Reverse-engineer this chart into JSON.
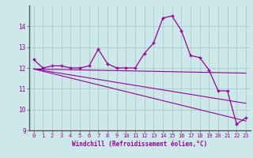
{
  "main_line_x": [
    0,
    1,
    2,
    3,
    4,
    5,
    6,
    7,
    8,
    9,
    10,
    11,
    12,
    13,
    14,
    15,
    16,
    17,
    18,
    19,
    20,
    21,
    22,
    23
  ],
  "main_line_y": [
    12.4,
    12.0,
    12.1,
    12.1,
    12.0,
    12.0,
    12.1,
    12.9,
    12.2,
    12.0,
    12.0,
    12.0,
    12.7,
    13.2,
    14.4,
    14.5,
    13.8,
    12.6,
    12.5,
    11.9,
    10.9,
    10.9,
    9.3,
    9.6
  ],
  "trend1_x": [
    0,
    23
  ],
  "trend1_y": [
    11.95,
    11.75
  ],
  "trend2_x": [
    0,
    23
  ],
  "trend2_y": [
    11.95,
    10.3
  ],
  "trend3_x": [
    0,
    23
  ],
  "trend3_y": [
    11.95,
    9.45
  ],
  "bg_color": "#cce8e8",
  "grid_color": "#aacccc",
  "line_color": "#990099",
  "xlim": [
    -0.5,
    23.5
  ],
  "ylim": [
    9,
    15
  ],
  "yticks": [
    9,
    10,
    11,
    12,
    13,
    14
  ],
  "xticks": [
    0,
    1,
    2,
    3,
    4,
    5,
    6,
    7,
    8,
    9,
    10,
    11,
    12,
    13,
    14,
    15,
    16,
    17,
    18,
    19,
    20,
    21,
    22,
    23
  ],
  "xlabel": "Windchill (Refroidissement éolien,°C)",
  "font_color": "#990099",
  "marker": "+",
  "markersize": 3.5,
  "linewidth": 0.9
}
